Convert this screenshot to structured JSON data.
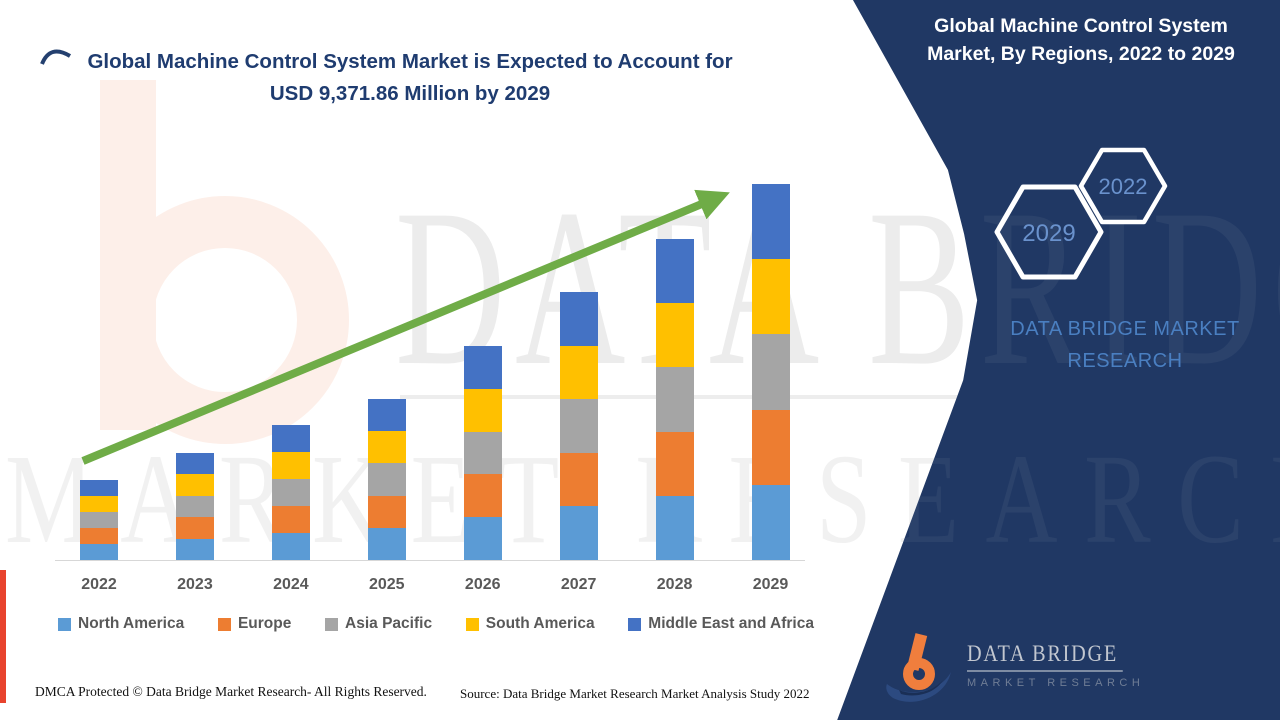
{
  "main_title": {
    "line1": "Global Machine Control System Market is Expected to Account for",
    "line2": "USD 9,371.86 Million by 2029"
  },
  "side_panel": {
    "heading_line1": "Global Machine Control System",
    "heading_line2": "Market, By Regions, 2022 to 2029",
    "hexagon_year_start": "2022",
    "hexagon_year_end": "2029",
    "brand_line1": "DATA BRIDGE MARKET",
    "brand_line2": "RESEARCH",
    "logo_name": "DATA BRIDGE",
    "logo_subtitle": "MARKET RESEARCH"
  },
  "watermark": {
    "line1": "DATA BRIDGE",
    "line2": "MARKET RESEARCH"
  },
  "footer": {
    "dmca": "DMCA Protected © Data Bridge Market Research- All Rights Reserved.",
    "source": "Source: Data Bridge Market Research Market Analysis Study 2022"
  },
  "chart_data": {
    "type": "bar",
    "stacked": true,
    "title": "Global Machine Control System Market, By Regions, 2022 to 2029",
    "unit": "USD Million",
    "categories": [
      "2022",
      "2023",
      "2024",
      "2025",
      "2026",
      "2027",
      "2028",
      "2029"
    ],
    "series": [
      {
        "name": "North America",
        "color": "#5B9BD5",
        "values": [
          398.8,
          533.4,
          672.6,
          802.6,
          1066.8,
          1336.0,
          1600.4,
          1874.4
        ]
      },
      {
        "name": "Europe",
        "color": "#ED7D31",
        "values": [
          398.8,
          533.4,
          672.6,
          802.6,
          1066.8,
          1336.0,
          1600.4,
          1874.4
        ]
      },
      {
        "name": "Asia Pacific",
        "color": "#A5A5A5",
        "values": [
          398.8,
          533.4,
          672.6,
          802.6,
          1066.8,
          1336.0,
          1600.4,
          1874.4
        ]
      },
      {
        "name": "South America",
        "color": "#FFC000",
        "values": [
          398.8,
          533.4,
          672.6,
          802.6,
          1066.8,
          1336.0,
          1600.4,
          1874.4
        ]
      },
      {
        "name": "Middle East and Africa",
        "color": "#4472C4",
        "values": [
          398.8,
          533.4,
          672.6,
          802.6,
          1066.8,
          1336.0,
          1600.4,
          1874.46
        ]
      }
    ],
    "totals": [
      1994,
      2667,
      3363,
      4013,
      5334,
      6680,
      8002,
      9371.86
    ],
    "highlight": "USD 9,371.86 Million by 2029",
    "trend_arrow": true,
    "legend_position": "bottom",
    "y_axis_visible": false,
    "grid": false
  },
  "colors": {
    "panel_navy": "#203864",
    "title_navy": "#1F3C70",
    "accent_green": "#6FAC47",
    "hex_year_blue": "#6A92CD",
    "brand_blue": "#4A7FC1",
    "text_gray": "#595959",
    "red_strip": "#E8432D"
  }
}
